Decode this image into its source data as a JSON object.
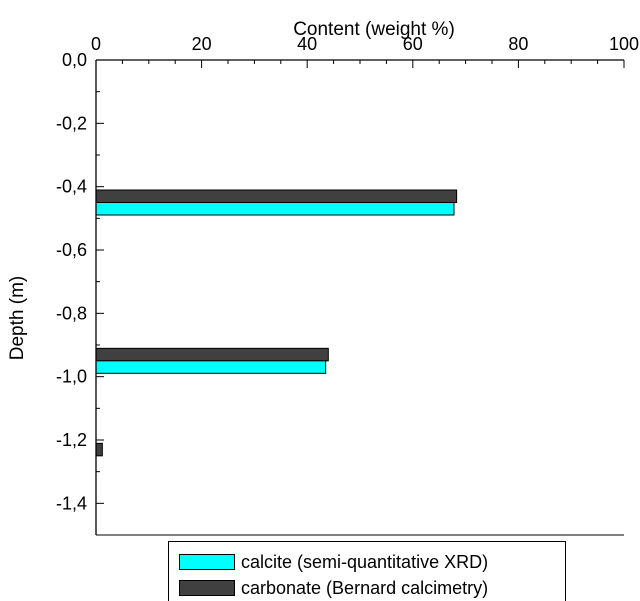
{
  "chart_data": {
    "type": "bar",
    "orientation": "horizontal",
    "title": "Content (weight %)",
    "xlabel": "Content (weight %)",
    "ylabel": "Depth (m)",
    "xlim": [
      0,
      100
    ],
    "ylim": [
      -1.5,
      0.0
    ],
    "x_ticks": [
      "0",
      "20",
      "40",
      "60",
      "80",
      "100"
    ],
    "y_ticks": [
      "0,0",
      "-0,2",
      "-0,4",
      "-0,6",
      "-0,8",
      "-1,0",
      "-1,2",
      "-1,4"
    ],
    "x_axis_position": "top",
    "grid": false,
    "legend_position": "bottom",
    "categories": [
      -0.45,
      -0.95,
      -1.25
    ],
    "series": [
      {
        "name": "calcite (semi-quantitative XRD)",
        "color": "#00ffff",
        "values": [
          67.8,
          43.5,
          null
        ]
      },
      {
        "name": "carbonate (Bernard calcimetry)",
        "color": "#404040",
        "values": [
          68.3,
          44.0,
          1.2
        ]
      }
    ]
  }
}
